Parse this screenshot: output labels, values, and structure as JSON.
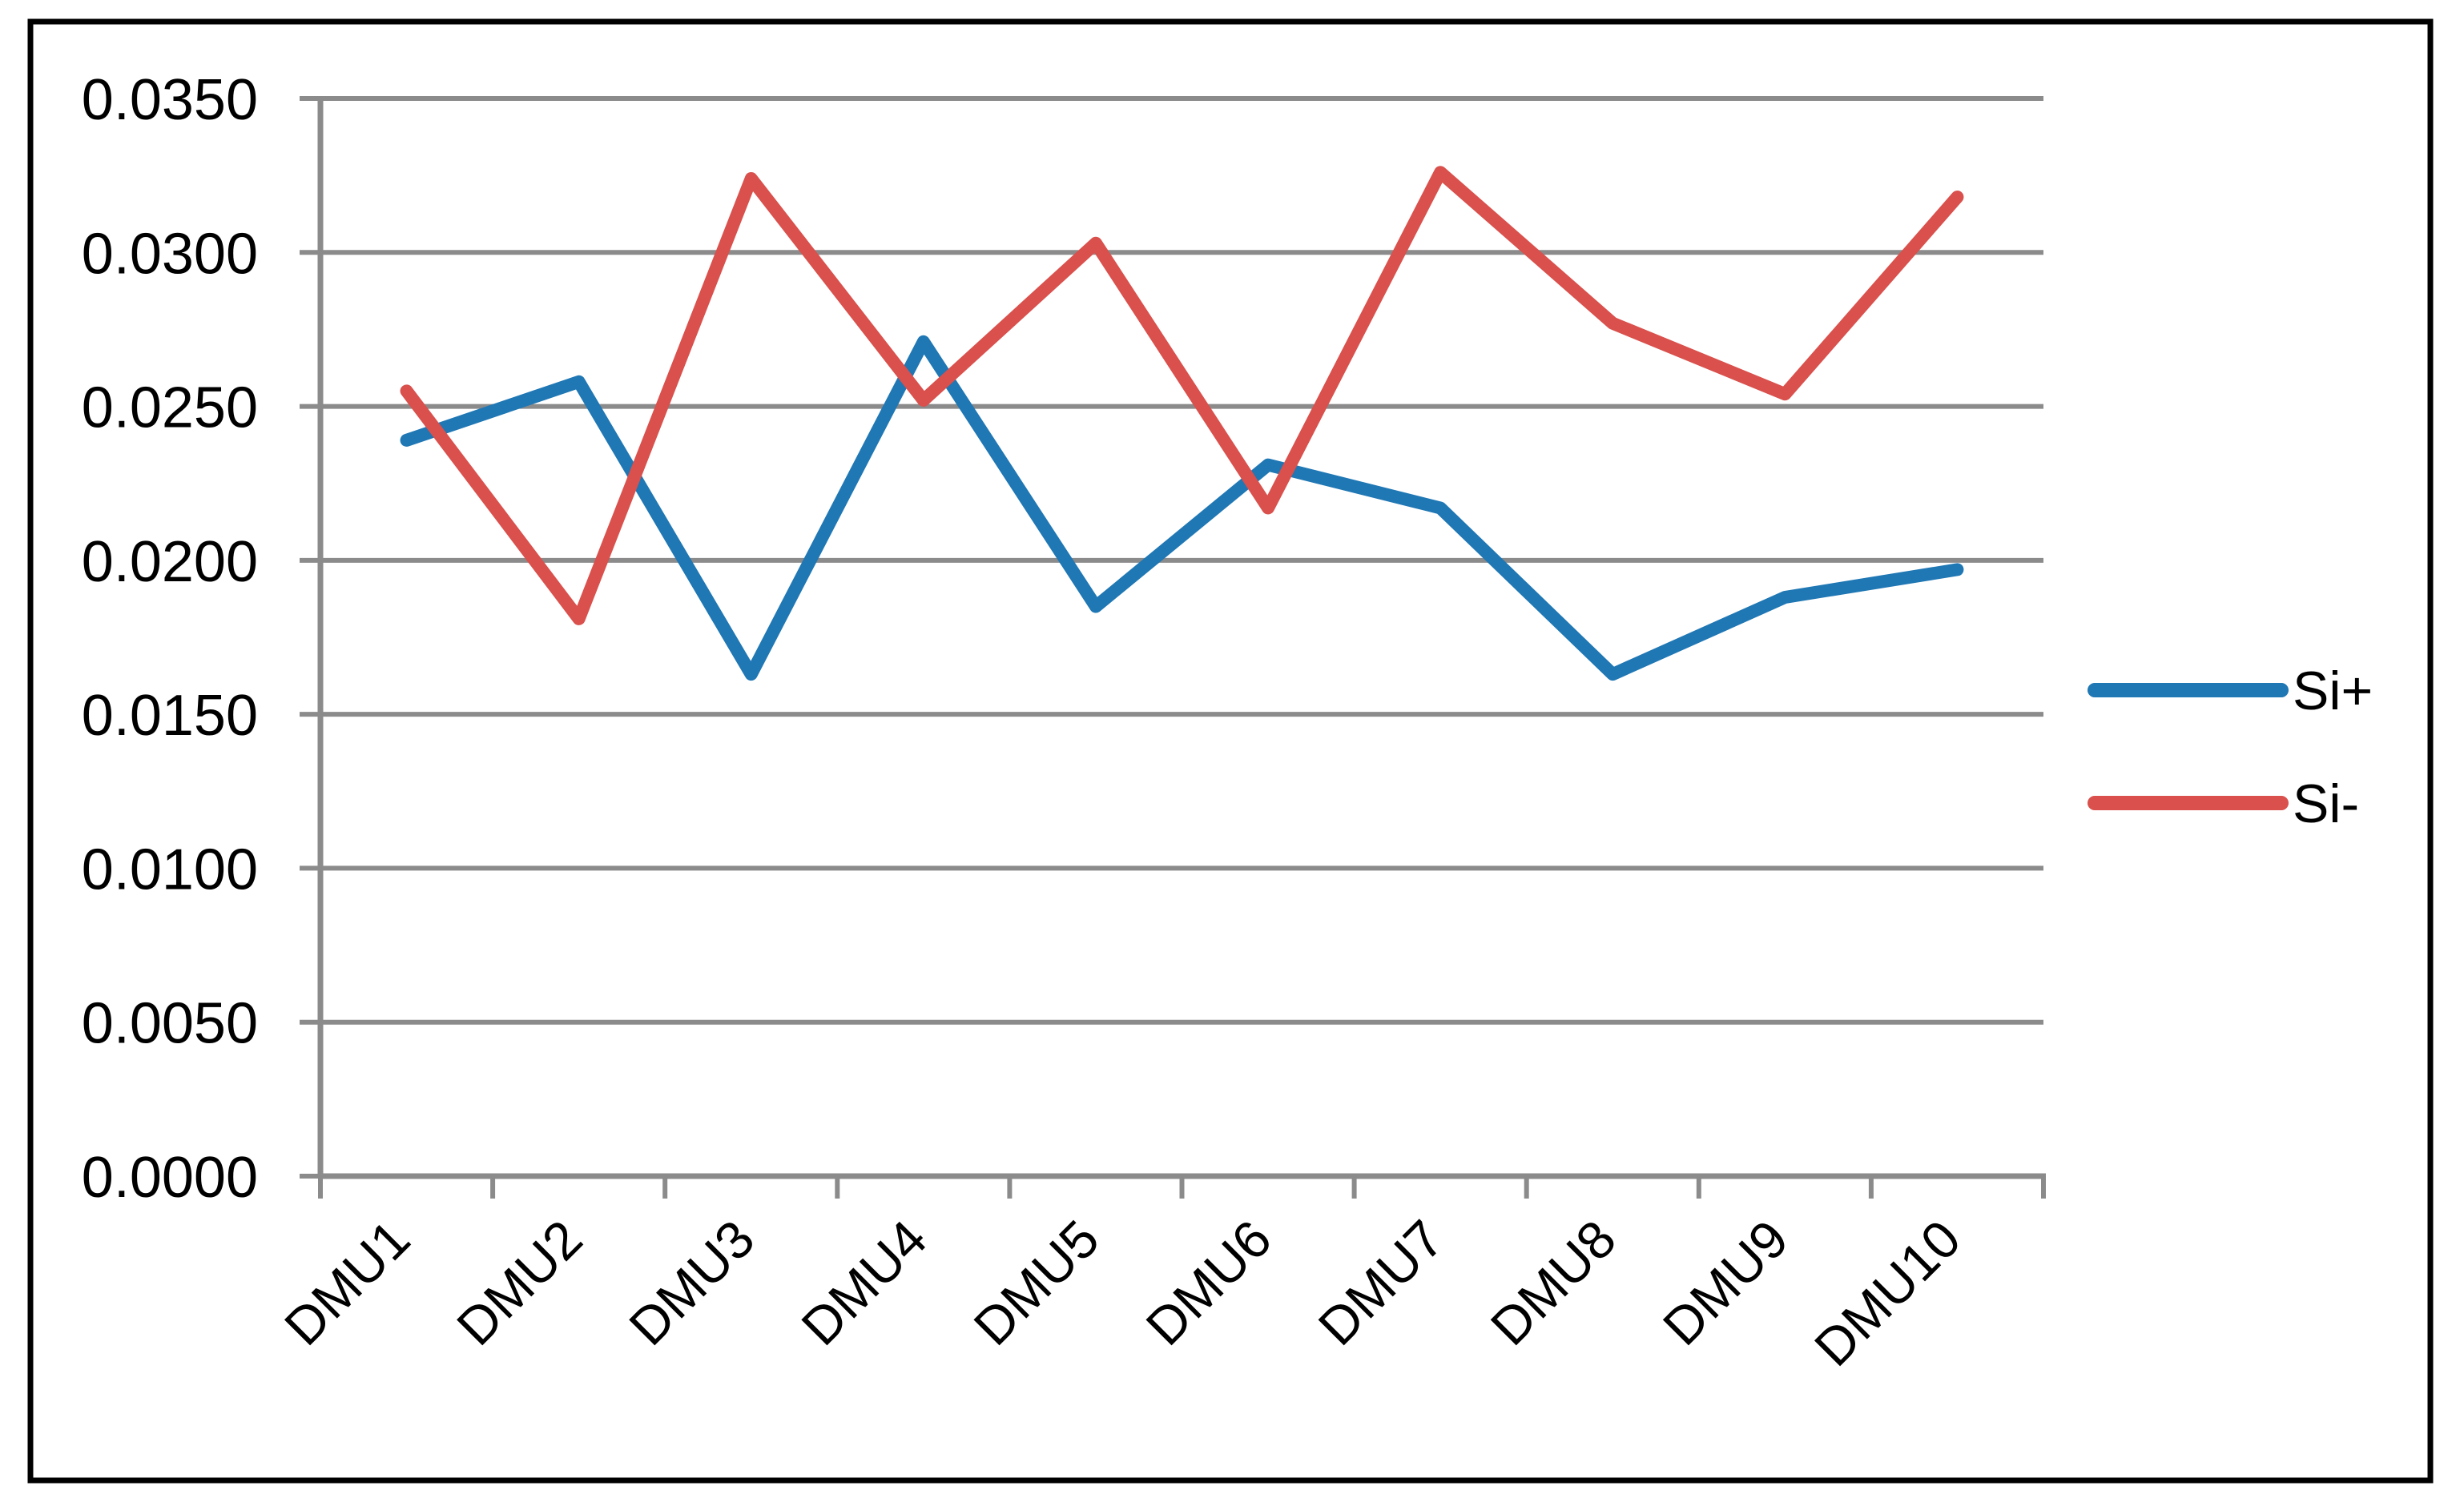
{
  "chart_data": {
    "type": "line",
    "title": "",
    "xlabel": "",
    "ylabel": "",
    "categories": [
      "DMU1",
      "DMU2",
      "DMU3",
      "DMU4",
      "DMU5",
      "DMU6",
      "DMU7",
      "DMU8",
      "DMU9",
      "DMU10"
    ],
    "series": [
      {
        "name": "Si+",
        "color": "#1F77B4",
        "values": [
          0.0239,
          0.0258,
          0.0163,
          0.0271,
          0.0185,
          0.0231,
          0.0217,
          0.0163,
          0.0188,
          0.0197
        ]
      },
      {
        "name": "Si-",
        "color": "#D9504C",
        "values": [
          0.0255,
          0.0181,
          0.0324,
          0.0252,
          0.0303,
          0.0217,
          0.0326,
          0.0277,
          0.0254,
          0.0318
        ]
      }
    ],
    "ylim": [
      0.0,
      0.035
    ],
    "ytick_step": 0.005,
    "ytick_labels": [
      "0.0000",
      "0.0050",
      "0.0100",
      "0.0150",
      "0.0200",
      "0.0250",
      "0.0300",
      "0.0350"
    ],
    "grid": "horizontal",
    "gridline_color": "#8B8B8B",
    "axis_color": "#8B8B8B",
    "text_color": "#000000",
    "background_color": "#FFFFFF",
    "frame_border_color": "#000000",
    "x_label_rotation": -45,
    "legend_position": "right"
  }
}
